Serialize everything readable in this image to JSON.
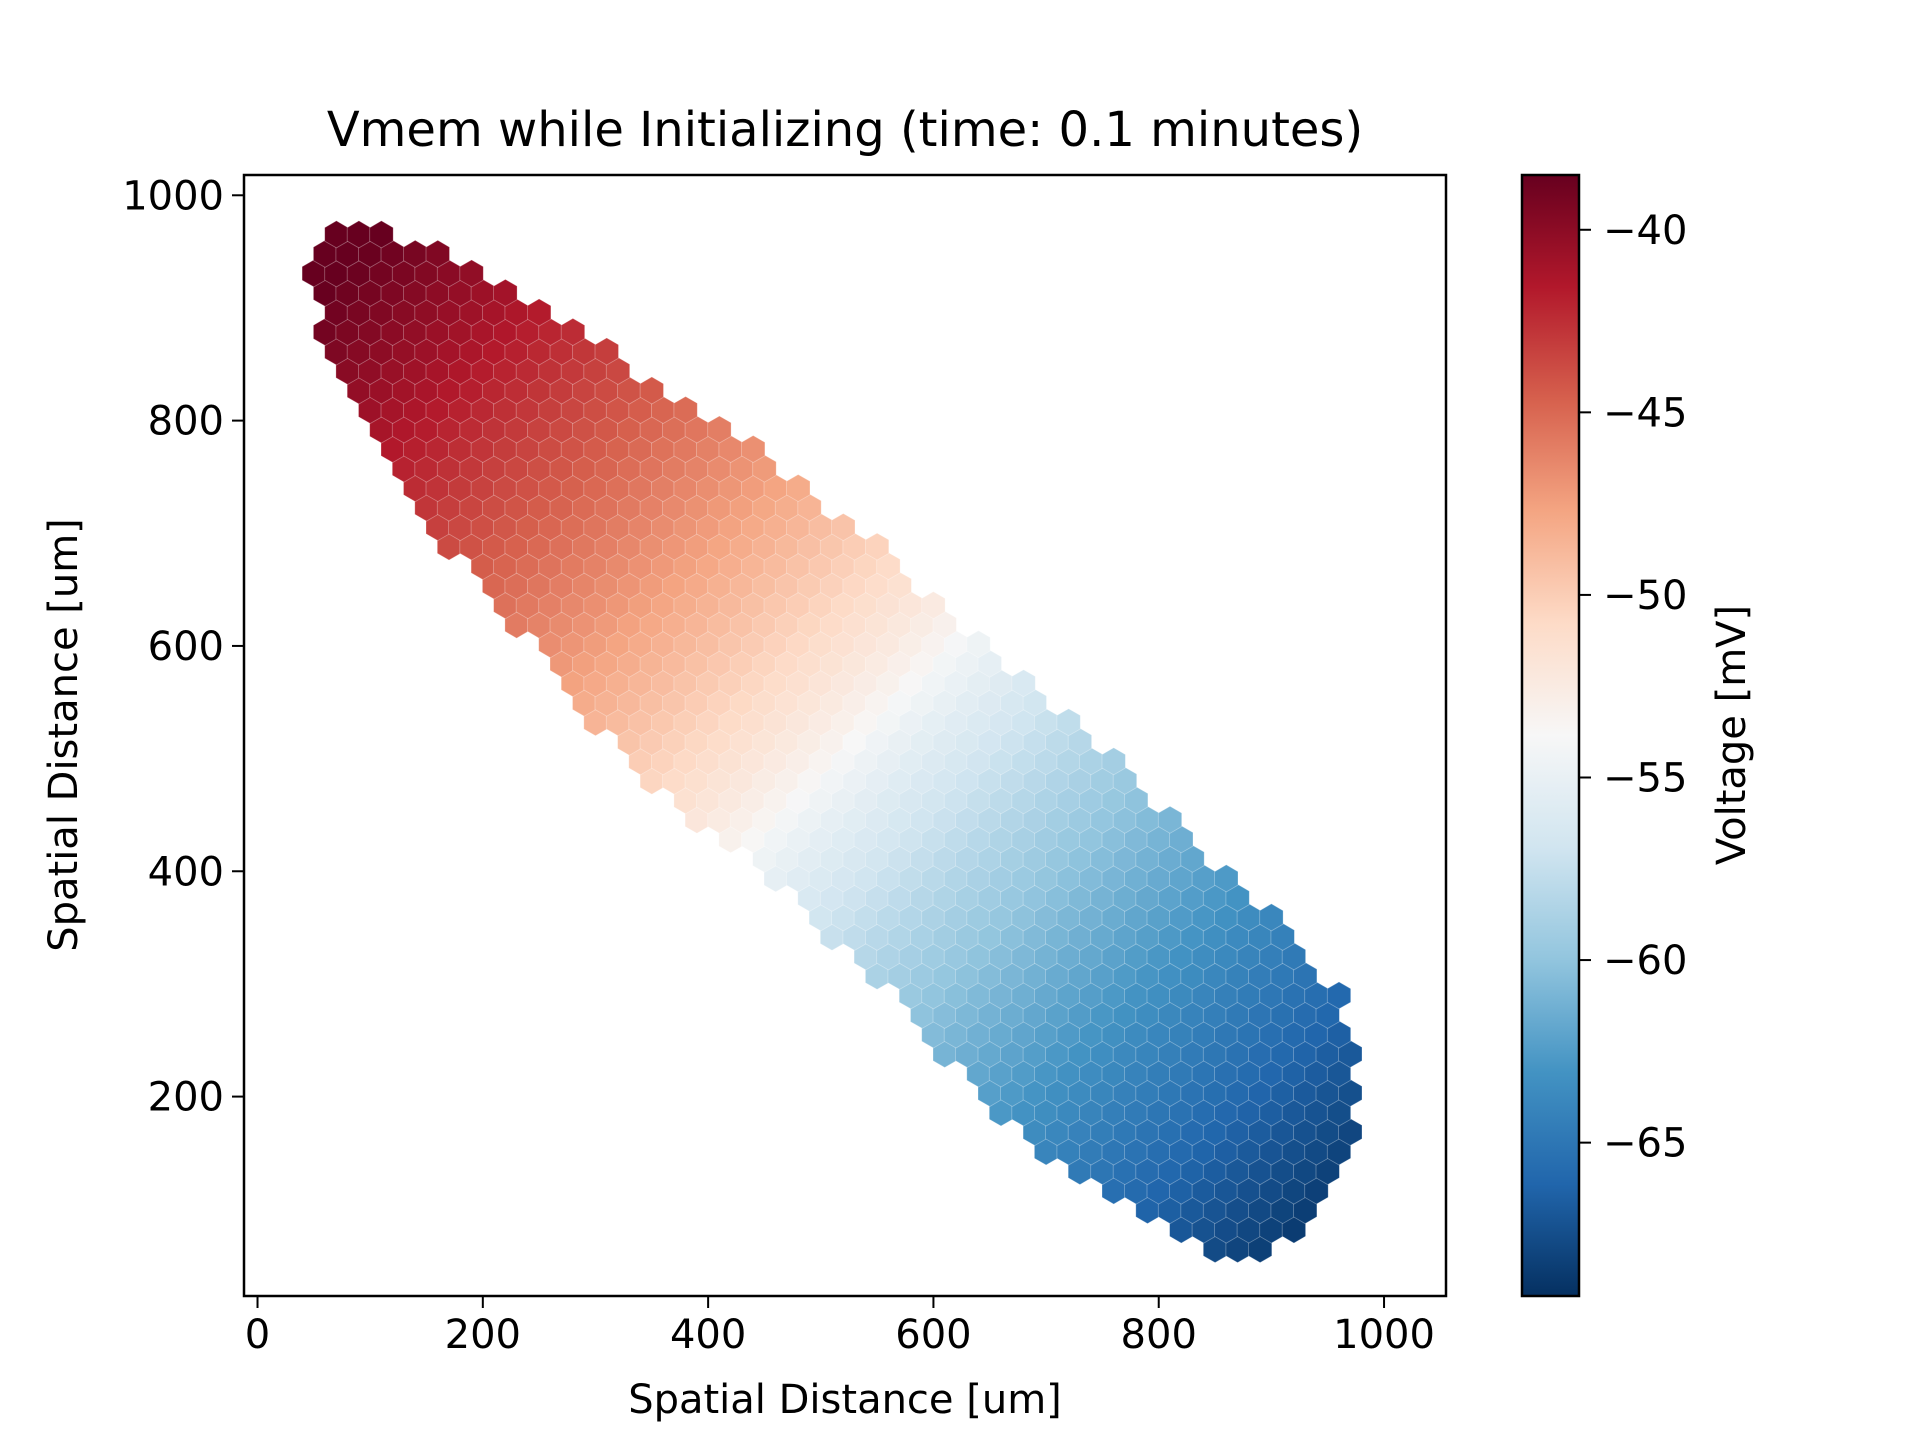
{
  "chart_data": {
    "type": "heatmap",
    "title": "Vmem while Initializing (time: 0.1 minutes)",
    "xlabel": "Spatial Distance [um]",
    "ylabel": "Spatial Distance [um]",
    "xlim": [
      -12,
      1055
    ],
    "ylim": [
      23,
      1018
    ],
    "xticks": [
      0,
      200,
      400,
      600,
      800,
      1000
    ],
    "yticks": [
      200,
      400,
      600,
      800,
      1000
    ],
    "xtick_labels": [
      "0",
      "200",
      "400",
      "600",
      "800",
      "1000"
    ],
    "ytick_labels": [
      "200",
      "400",
      "600",
      "800",
      "1000"
    ],
    "grid": false,
    "colorbar": {
      "label": "Voltage [mV]",
      "colormap": "RdBu_r",
      "vmin": -69.2,
      "vmax": -38.5,
      "ticks": [
        -40,
        -45,
        -50,
        -55,
        -60,
        -65
      ],
      "tick_labels": [
        "−40",
        "−45",
        "−50",
        "−55",
        "−60",
        "−65"
      ],
      "colors": [
        "#053061",
        "#2166ac",
        "#4393c3",
        "#92c5de",
        "#d1e5f0",
        "#f7f7f7",
        "#fddbc7",
        "#f4a582",
        "#d6604d",
        "#b2182b",
        "#67001f"
      ]
    },
    "cells": {
      "shape": "hexagonal grid",
      "cell_spacing_um": 20,
      "tissue_outline": [
        [
          45,
          935
        ],
        [
          55,
          955
        ],
        [
          70,
          968
        ],
        [
          120,
          966
        ],
        [
          170,
          945
        ],
        [
          240,
          910
        ],
        [
          300,
          870
        ],
        [
          350,
          835
        ],
        [
          420,
          790
        ],
        [
          500,
          730
        ],
        [
          560,
          680
        ],
        [
          610,
          630
        ],
        [
          660,
          590
        ],
        [
          720,
          540
        ],
        [
          780,
          480
        ],
        [
          840,
          420
        ],
        [
          880,
          380
        ],
        [
          920,
          340
        ],
        [
          955,
          300
        ],
        [
          975,
          260
        ],
        [
          980,
          210
        ],
        [
          975,
          160
        ],
        [
          960,
          130
        ],
        [
          945,
          110
        ],
        [
          920,
          80
        ],
        [
          900,
          60
        ],
        [
          870,
          45
        ],
        [
          845,
          55
        ],
        [
          810,
          80
        ],
        [
          760,
          110
        ],
        [
          700,
          150
        ],
        [
          640,
          200
        ],
        [
          590,
          260
        ],
        [
          540,
          310
        ],
        [
          480,
          370
        ],
        [
          420,
          420
        ],
        [
          360,
          470
        ],
        [
          300,
          530
        ],
        [
          250,
          590
        ],
        [
          200,
          650
        ],
        [
          160,
          700
        ],
        [
          120,
          760
        ],
        [
          90,
          810
        ],
        [
          70,
          850
        ],
        [
          55,
          890
        ]
      ],
      "voltage_gradient": {
        "high_point": [
          90,
          945
        ],
        "high_value": -38.5,
        "low_point": [
          960,
          75
        ],
        "low_value": -69.2
      }
    }
  }
}
